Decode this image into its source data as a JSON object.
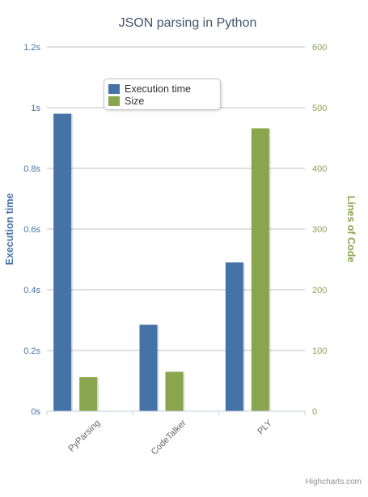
{
  "chart_data": {
    "type": "bar",
    "title": "JSON parsing in Python",
    "categories": [
      "PyParsing",
      "CodeTalker",
      "PLY"
    ],
    "y_axes": [
      {
        "title": "Execution time",
        "min": 0,
        "max": 1.2,
        "ticks": [
          0,
          0.2,
          0.4,
          0.6,
          0.8,
          1,
          1.2
        ],
        "tick_labels": [
          "0s",
          "0.2s",
          "0.4s",
          "0.6s",
          "0.8s",
          "1s",
          "1.2s"
        ],
        "color": "#4572A7",
        "side": "left"
      },
      {
        "title": "Lines of Code",
        "min": 0,
        "max": 600,
        "ticks": [
          0,
          100,
          200,
          300,
          400,
          500,
          600
        ],
        "tick_labels": [
          "0",
          "100",
          "200",
          "300",
          "400",
          "500",
          "600"
        ],
        "color": "#89A54E",
        "side": "right"
      }
    ],
    "series": [
      {
        "name": "Execution time",
        "values": [
          0.98,
          0.285,
          0.49
        ],
        "axis": 0,
        "color": "#4572A7"
      },
      {
        "name": "Size",
        "values": [
          56,
          65,
          466
        ],
        "axis": 1,
        "color": "#89A54E"
      }
    ],
    "grid": true,
    "legend_position": "top-left-inside"
  },
  "credits": "Highcharts.com"
}
